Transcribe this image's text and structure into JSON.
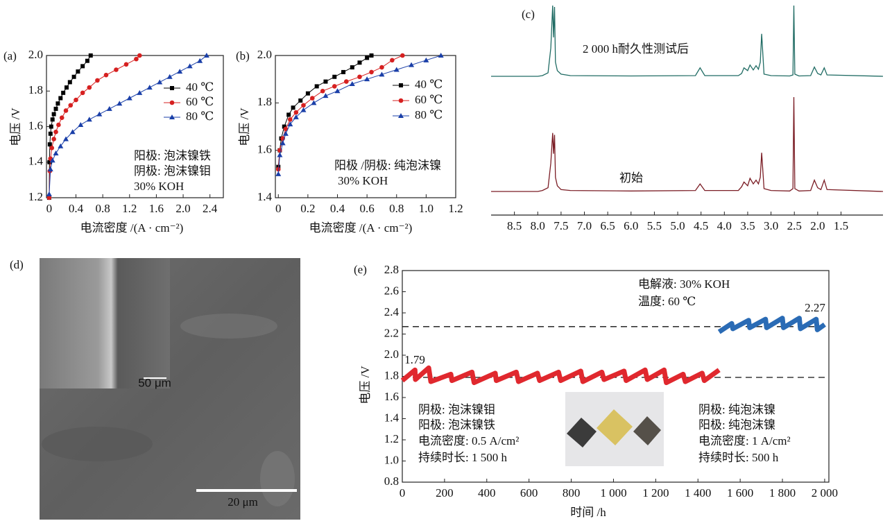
{
  "chart_data": [
    {
      "type": "line",
      "label": "(a)",
      "xlabel": "电流密度 /(A · cm⁻²)",
      "ylabel": "电压 /V",
      "xlim": [
        -0.04,
        2.6
      ],
      "xticks": [
        0,
        0.4,
        0.8,
        1.2,
        1.6,
        {
          "value": 2,
          "label": "2.0"
        },
        2.4
      ],
      "ylim": [
        1.2,
        2.0
      ],
      "yticks": [
        1.2,
        1.4,
        1.6,
        1.8,
        {
          "value": 2,
          "label": "2.0"
        }
      ],
      "legend": "right",
      "series": [
        {
          "name": "40 ℃",
          "color": "#000000",
          "marker": "square",
          "x": [
            0,
            0.005,
            0.01,
            0.02,
            0.03,
            0.05,
            0.07,
            0.1,
            0.13,
            0.17,
            0.21,
            0.26,
            0.31,
            0.37,
            0.43,
            0.5,
            0.57,
            0.62
          ],
          "values": [
            1.2,
            1.4,
            1.5,
            1.56,
            1.6,
            1.64,
            1.67,
            1.7,
            1.73,
            1.76,
            1.79,
            1.82,
            1.85,
            1.88,
            1.91,
            1.94,
            1.97,
            2.0
          ]
        },
        {
          "name": "60 ℃",
          "color": "#d62020",
          "marker": "circle",
          "x": [
            0,
            0.01,
            0.02,
            0.04,
            0.07,
            0.1,
            0.14,
            0.19,
            0.25,
            0.32,
            0.4,
            0.5,
            0.6,
            0.72,
            0.85,
            1.0,
            1.15,
            1.3,
            1.35
          ],
          "values": [
            1.2,
            1.35,
            1.42,
            1.48,
            1.53,
            1.57,
            1.61,
            1.65,
            1.69,
            1.72,
            1.75,
            1.79,
            1.82,
            1.86,
            1.89,
            1.92,
            1.95,
            1.98,
            2.0
          ]
        },
        {
          "name": "80 ℃",
          "color": "#1a3fa8",
          "marker": "triangle",
          "x": [
            0,
            0.02,
            0.05,
            0.1,
            0.17,
            0.25,
            0.35,
            0.47,
            0.6,
            0.75,
            0.9,
            1.05,
            1.2,
            1.35,
            1.5,
            1.65,
            1.8,
            1.95,
            2.1,
            2.25,
            2.35
          ],
          "values": [
            1.22,
            1.36,
            1.41,
            1.45,
            1.49,
            1.53,
            1.57,
            1.61,
            1.64,
            1.67,
            1.7,
            1.73,
            1.76,
            1.79,
            1.82,
            1.85,
            1.88,
            1.91,
            1.94,
            1.97,
            2.0
          ]
        }
      ],
      "annotations": [
        "阳极: 泡沫镍铁",
        "阴极: 泡沫镍钼",
        "30% KOH"
      ]
    },
    {
      "type": "line",
      "label": "(b)",
      "xlabel": "电流密度 /(A · cm⁻²)",
      "ylabel": "电压 /V",
      "xlim": [
        -0.02,
        1.2
      ],
      "xticks": [
        0,
        0.2,
        0.4,
        0.6,
        0.8,
        {
          "value": 1,
          "label": "1.0"
        },
        1.2
      ],
      "ylim": [
        1.4,
        2.0
      ],
      "yticks": [
        1.4,
        1.6,
        1.8,
        {
          "value": 2,
          "label": "2.0"
        }
      ],
      "legend": "right",
      "series": [
        {
          "name": "40 ℃",
          "color": "#000000",
          "marker": "square",
          "x": [
            0,
            0.01,
            0.02,
            0.04,
            0.07,
            0.1,
            0.15,
            0.2,
            0.26,
            0.32,
            0.38,
            0.44,
            0.5,
            0.55,
            0.6,
            0.63
          ],
          "values": [
            1.53,
            1.6,
            1.65,
            1.7,
            1.75,
            1.78,
            1.81,
            1.84,
            1.87,
            1.89,
            1.91,
            1.93,
            1.95,
            1.97,
            1.99,
            2.0
          ]
        },
        {
          "name": "60 ℃",
          "color": "#d62020",
          "marker": "circle",
          "x": [
            0,
            0.01,
            0.03,
            0.05,
            0.08,
            0.12,
            0.17,
            0.23,
            0.3,
            0.38,
            0.46,
            0.55,
            0.63,
            0.7,
            0.77,
            0.84
          ],
          "values": [
            1.52,
            1.6,
            1.65,
            1.69,
            1.73,
            1.76,
            1.79,
            1.82,
            1.85,
            1.87,
            1.89,
            1.91,
            1.93,
            1.95,
            1.98,
            2.0
          ]
        },
        {
          "name": "80 ℃",
          "color": "#1a3fa8",
          "marker": "triangle",
          "x": [
            0,
            0.01,
            0.03,
            0.05,
            0.08,
            0.12,
            0.17,
            0.24,
            0.32,
            0.4,
            0.5,
            0.6,
            0.7,
            0.8,
            0.9,
            1.0,
            1.1
          ],
          "values": [
            1.5,
            1.58,
            1.63,
            1.67,
            1.71,
            1.74,
            1.77,
            1.8,
            1.83,
            1.85,
            1.88,
            1.9,
            1.92,
            1.94,
            1.96,
            1.98,
            2.0
          ]
        }
      ],
      "annotations": [
        "阳极 /阴极: 纯泡沫镍",
        "30% KOH"
      ]
    },
    {
      "type": "spectrum",
      "label": "(c)",
      "xlim": [
        9.0,
        0.6
      ],
      "xticks": [
        8.5,
        {
          "value": 8,
          "label": "8.0"
        },
        7.5,
        {
          "value": 7,
          "label": "7.0"
        },
        6.5,
        {
          "value": 6,
          "label": "6.0"
        },
        5.5,
        {
          "value": 5,
          "label": "5.0"
        },
        4.5,
        {
          "value": 4,
          "label": "4.0"
        },
        3.5,
        {
          "value": 3,
          "label": "3.0"
        },
        2.5,
        {
          "value": 2,
          "label": "2.0"
        },
        1.5
      ],
      "ylim": [
        0,
        100
      ],
      "series": [
        {
          "color": "#1f6b63",
          "x": [
            9.0,
            8.0,
            7.9,
            7.78,
            7.72,
            7.68,
            7.66,
            7.64,
            7.62,
            7.58,
            7.5,
            7.3,
            6.0,
            4.62,
            4.52,
            4.42,
            3.7,
            3.63,
            3.58,
            3.5,
            3.45,
            3.38,
            3.32,
            3.27,
            3.23,
            3.2,
            3.15,
            3.0,
            2.6,
            2.53,
            2.51,
            2.49,
            2.4,
            2.15,
            2.07,
            2.0,
            1.93,
            1.86,
            1.8,
            0.6
          ],
          "values": [
            0,
            0,
            1,
            5,
            40,
            100,
            55,
            98,
            20,
            8,
            3,
            1,
            0.5,
            1,
            12,
            1,
            1,
            4,
            12,
            8,
            16,
            9,
            15,
            10,
            20,
            60,
            3,
            1,
            0.5,
            2,
            100,
            3,
            0.5,
            1,
            13,
            4,
            2,
            12,
            2,
            0
          ]
        },
        {
          "color": "#7a1c24",
          "x": [
            9.0,
            8.0,
            7.9,
            7.78,
            7.72,
            7.68,
            7.66,
            7.64,
            7.62,
            7.58,
            7.5,
            7.3,
            6.0,
            4.62,
            4.52,
            4.42,
            3.7,
            3.63,
            3.58,
            3.5,
            3.45,
            3.38,
            3.32,
            3.27,
            3.23,
            3.2,
            3.15,
            3.0,
            2.6,
            2.53,
            2.51,
            2.49,
            2.4,
            2.15,
            2.07,
            2.0,
            1.93,
            1.86,
            1.8,
            0.6
          ],
          "values": [
            0,
            0,
            1,
            4,
            30,
            62,
            40,
            60,
            15,
            6,
            2,
            1,
            0.5,
            1,
            8,
            1,
            1,
            5,
            10,
            6,
            14,
            8,
            12,
            8,
            15,
            41,
            3,
            1,
            0.5,
            3,
            100,
            3,
            0.5,
            1,
            12,
            4,
            2,
            12,
            2,
            0
          ]
        }
      ],
      "annotations": [
        "2 000 h耐久性测试后",
        "初始"
      ]
    },
    {
      "type": "image",
      "label": "(d)",
      "annotations": [
        "20 μm",
        "50 μm"
      ]
    },
    {
      "type": "line",
      "label": "(e)",
      "xlabel": "时间 /h",
      "ylabel": "电压 /V",
      "xlim": [
        0,
        2020
      ],
      "xticks": [
        0,
        200,
        400,
        600,
        800,
        {
          "value": 1000,
          "label": "1 000"
        },
        {
          "value": 1200,
          "label": "1 200"
        },
        {
          "value": 1400,
          "label": "1 400"
        },
        {
          "value": 1600,
          "label": "1 600"
        },
        {
          "value": 1800,
          "label": "1 800"
        },
        {
          "value": 2000,
          "label": "2 000"
        }
      ],
      "ylim": [
        0.8,
        2.8
      ],
      "yticks": [
        0.8,
        {
          "value": 1,
          "label": "1.0"
        },
        1.2,
        1.4,
        1.6,
        1.8,
        {
          "value": 2,
          "label": "2.0"
        },
        2.2,
        2.4,
        2.6,
        2.8
      ],
      "hlines": [
        2.27,
        1.79
      ],
      "series": [
        {
          "color": "#e0282e",
          "x": [
            0,
            60,
            62,
            125,
            135,
            230,
            235,
            330,
            340,
            440,
            445,
            540,
            550,
            640,
            650,
            740,
            750,
            845,
            855,
            945,
            955,
            1050,
            1060,
            1150,
            1160,
            1240,
            1250,
            1330,
            1340,
            1420,
            1430,
            1500
          ],
          "values": [
            1.76,
            1.86,
            1.77,
            1.88,
            1.75,
            1.82,
            1.76,
            1.84,
            1.74,
            1.83,
            1.76,
            1.84,
            1.75,
            1.83,
            1.76,
            1.84,
            1.76,
            1.85,
            1.75,
            1.84,
            1.77,
            1.85,
            1.76,
            1.86,
            1.77,
            1.86,
            1.74,
            1.82,
            1.75,
            1.83,
            1.76,
            1.86
          ]
        },
        {
          "color": "#2a6bb5",
          "x": [
            1500,
            1560,
            1565,
            1640,
            1645,
            1720,
            1725,
            1800,
            1805,
            1880,
            1885,
            1960,
            1965,
            2000
          ],
          "values": [
            2.22,
            2.3,
            2.25,
            2.33,
            2.26,
            2.34,
            2.26,
            2.35,
            2.26,
            2.35,
            2.25,
            2.34,
            2.24,
            2.29
          ]
        }
      ],
      "annotations": [
        "电解液: 30% KOH",
        "温度: 60 ℃",
        "阴极: 泡沫镍钼",
        "阳极: 泡沫镍铁",
        "电流密度: 0.5 A/cm²",
        "持续时长: 1 500 h",
        "阴极: 纯泡沫镍",
        "阳极: 纯泡沫镍",
        "电流密度: 1 A/cm²",
        "持续时长: 500 h"
      ]
    }
  ]
}
